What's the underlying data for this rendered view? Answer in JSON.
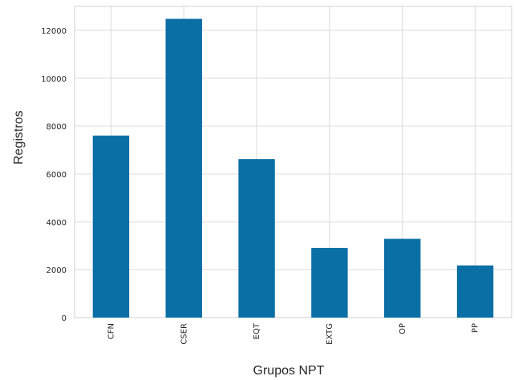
{
  "chart_data": {
    "type": "bar",
    "title": "",
    "xlabel": "Grupos NPT",
    "ylabel": "Registros",
    "categories": [
      "CFN",
      "CSER",
      "EQT",
      "EXTG",
      "OP",
      "PP"
    ],
    "values": [
      7600,
      12480,
      6620,
      2910,
      3290,
      2180
    ],
    "ylim": [
      0,
      13000
    ],
    "yticks": [
      0,
      2000,
      4000,
      6000,
      8000,
      10000,
      12000
    ],
    "ytick_labels": [
      "0",
      "2000",
      "4000",
      "6000",
      "8000",
      "10000",
      "12000"
    ],
    "grid": true,
    "legend": "none",
    "colors": {
      "bar": "#0a6fa5",
      "grid": "#d9d9d9",
      "background": "#ffffff"
    }
  }
}
